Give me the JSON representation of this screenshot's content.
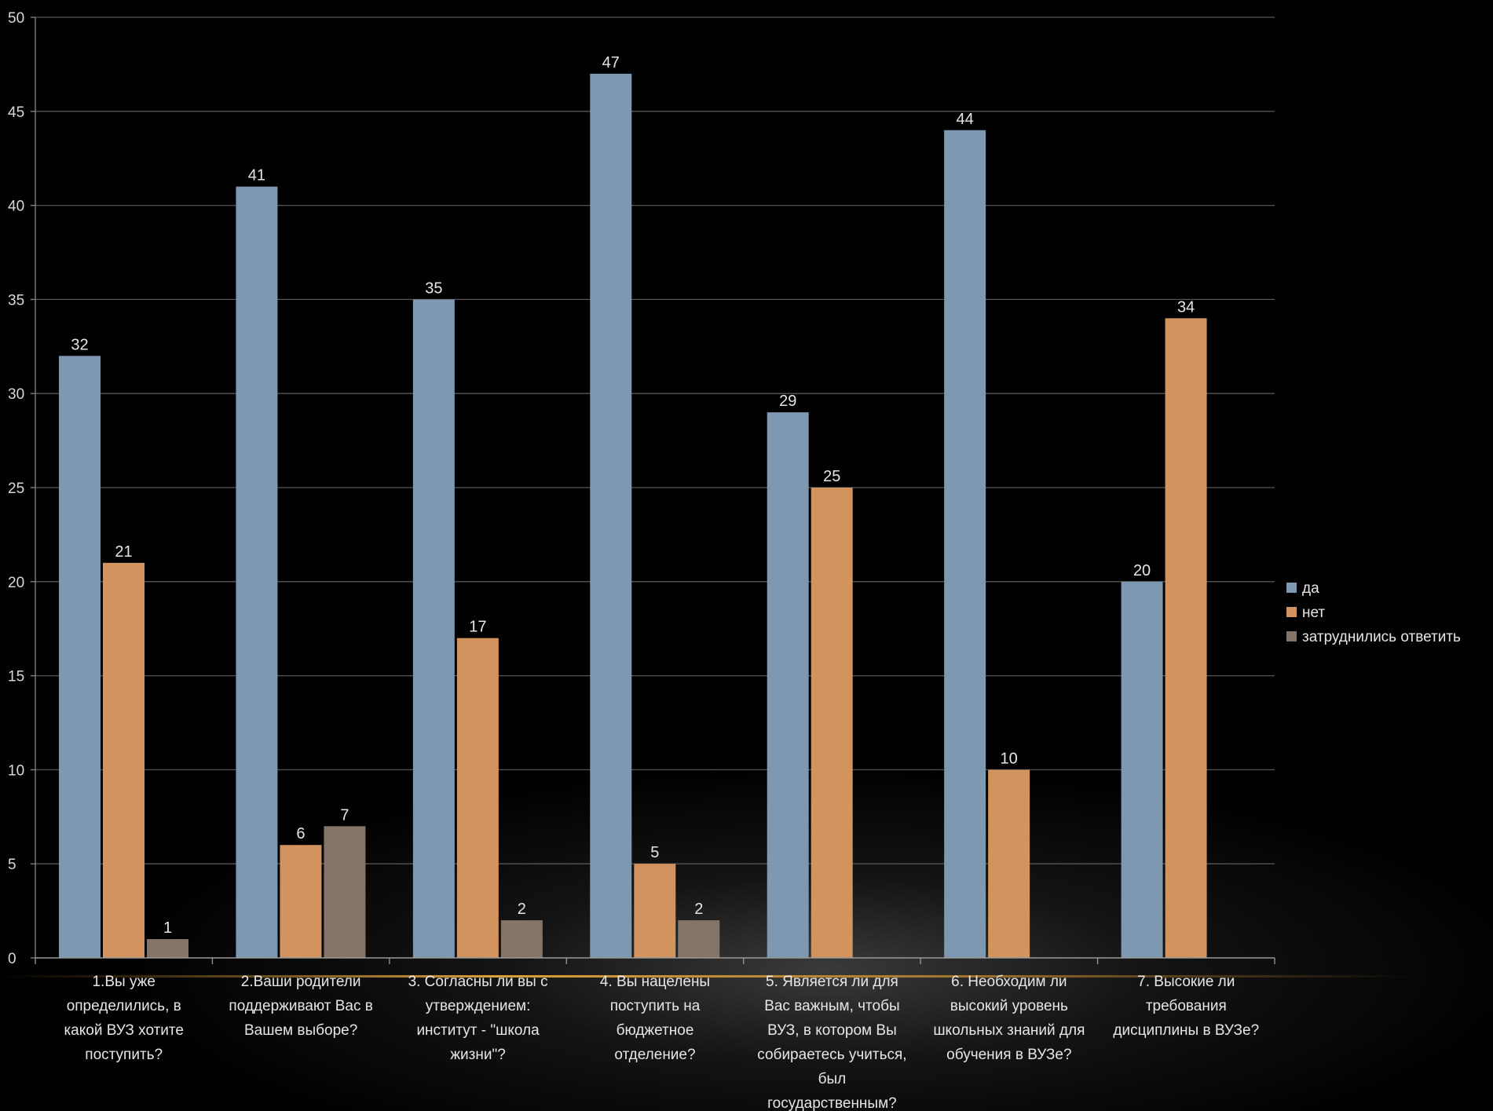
{
  "colors": {
    "background": "#000000",
    "grid": "#555555",
    "text": "#e6e6e6",
    "da": "#7f98b2",
    "net": "#d3935e",
    "zatrud": "#857569"
  },
  "chart_data": {
    "type": "bar",
    "title": "",
    "xlabel": "",
    "ylabel": "",
    "ylim": [
      0,
      50
    ],
    "yticks": [
      0,
      5,
      10,
      15,
      20,
      25,
      30,
      35,
      40,
      45,
      50
    ],
    "grid": true,
    "legend_position": "right",
    "categories": [
      "1.Вы уже определились, в какой ВУЗ хотите поступить?",
      "2.Ваши родители поддерживают Вас в Вашем выборе?",
      "3. Согласны ли вы с утверждением: институт - \"школа жизни\"?",
      "4. Вы нацелены поступить на бюджетное отделение?",
      "5. Является ли для Вас важным, чтобы ВУЗ, в котором Вы собираетесь учиться, был государственным?",
      "6. Необходим ли высокий уровень школьных знаний для обучения в ВУЗе?",
      "7. Высокие ли требования дисциплины в ВУЗе?"
    ],
    "category_lines": [
      [
        "1.Вы уже",
        "определились, в",
        "какой ВУЗ хотите",
        "поступить?"
      ],
      [
        "2.Ваши родители",
        "поддерживают Вас в",
        "Вашем выборе?"
      ],
      [
        "3. Согласны ли вы с",
        "утверждением:",
        "институт - \"школа",
        "жизни\"?"
      ],
      [
        "4. Вы нацелены",
        "поступить на",
        "бюджетное",
        "отделение?"
      ],
      [
        "5. Является ли для",
        "Вас важным, чтобы",
        "ВУЗ, в котором Вы",
        "собираетесь учиться,",
        "был",
        "государственным?"
      ],
      [
        "6. Необходим ли",
        "высокий уровень",
        "школьных знаний для",
        "обучения в ВУЗе?"
      ],
      [
        "7. Высокие ли",
        "требования",
        "дисциплины в ВУЗе?"
      ]
    ],
    "series": [
      {
        "name": "да",
        "color": "#7f98b2",
        "values": [
          32,
          41,
          35,
          47,
          29,
          44,
          20
        ]
      },
      {
        "name": "нет",
        "color": "#d3935e",
        "values": [
          21,
          6,
          17,
          5,
          25,
          10,
          34
        ]
      },
      {
        "name": "затруднились ответить",
        "color": "#857569",
        "values": [
          1,
          7,
          2,
          2,
          null,
          null,
          null
        ]
      }
    ]
  }
}
